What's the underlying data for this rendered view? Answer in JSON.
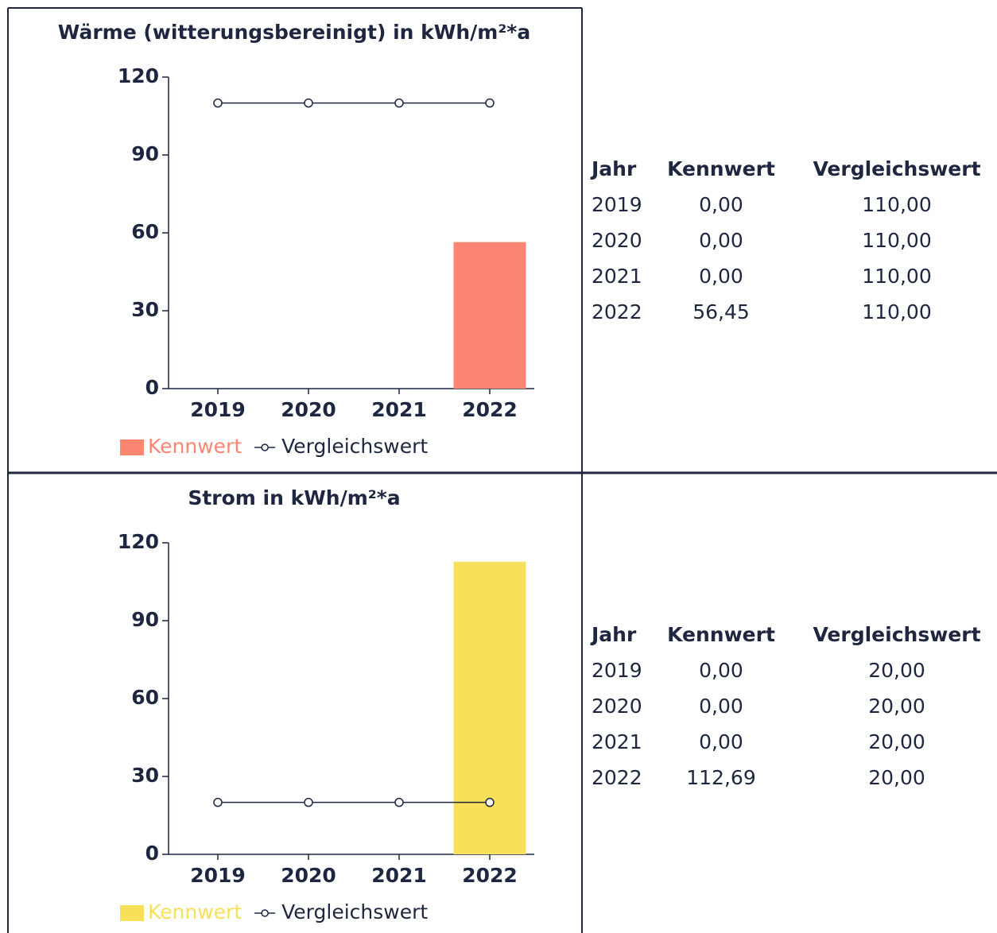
{
  "chart_data": [
    {
      "type": "bar",
      "title": "Wärme (witterungsbereinigt) in kWh/m²*a",
      "categories": [
        "2019",
        "2020",
        "2021",
        "2022"
      ],
      "series": [
        {
          "name": "Kennwert",
          "type": "bar",
          "color": "#fd8672",
          "values": [
            0,
            0,
            0,
            56.45
          ]
        },
        {
          "name": "Vergleichswert",
          "type": "line",
          "color": "#1e2640",
          "values": [
            110,
            110,
            110,
            110
          ]
        }
      ],
      "ylim": [
        0,
        120
      ],
      "yticks": [
        0,
        30,
        60,
        90,
        120
      ]
    },
    {
      "type": "bar",
      "title": "Strom in kWh/m²*a",
      "categories": [
        "2019",
        "2020",
        "2021",
        "2022"
      ],
      "series": [
        {
          "name": "Kennwert",
          "type": "bar",
          "color": "#f8e05b",
          "values": [
            0,
            0,
            0,
            112.69
          ]
        },
        {
          "name": "Vergleichswert",
          "type": "line",
          "color": "#1e2640",
          "values": [
            20,
            20,
            20,
            20
          ]
        }
      ],
      "ylim": [
        0,
        120
      ],
      "yticks": [
        0,
        30,
        60,
        90,
        120
      ]
    }
  ],
  "tables": [
    {
      "header": [
        "Jahr",
        "Kennwert",
        "Vergleichswert"
      ],
      "rows": [
        [
          "2019",
          "0,00",
          "110,00"
        ],
        [
          "2020",
          "0,00",
          "110,00"
        ],
        [
          "2021",
          "0,00",
          "110,00"
        ],
        [
          "2022",
          "56,45",
          "110,00"
        ]
      ]
    },
    {
      "header": [
        "Jahr",
        "Kennwert",
        "Vergleichswert"
      ],
      "rows": [
        [
          "2019",
          "0,00",
          "20,00"
        ],
        [
          "2020",
          "0,00",
          "20,00"
        ],
        [
          "2021",
          "0,00",
          "20,00"
        ],
        [
          "2022",
          "112,69",
          "20,00"
        ]
      ]
    }
  ]
}
